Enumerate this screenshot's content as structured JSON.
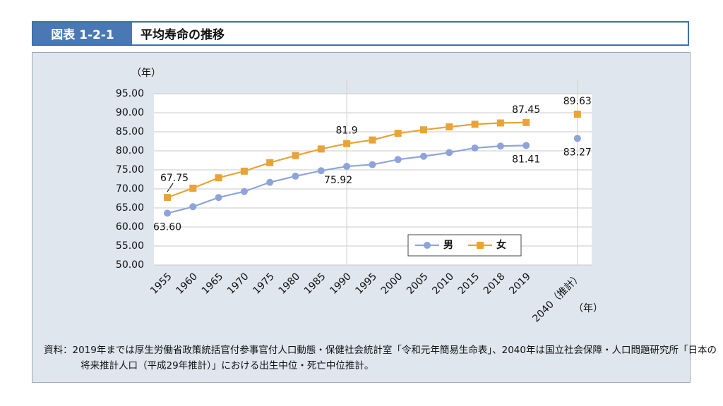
{
  "header": {
    "label": "図表 1-2-1",
    "title": "平均寿命の推移"
  },
  "chart_data": {
    "type": "line",
    "y_label": "（年）",
    "x_label": "（年）",
    "categories": [
      "1955",
      "1960",
      "1965",
      "1970",
      "1975",
      "1980",
      "1985",
      "1990",
      "1995",
      "2000",
      "2005",
      "2010",
      "2015",
      "2018",
      "2019",
      null,
      "2040（推計）"
    ],
    "series": [
      {
        "name": "男",
        "color": "#8ea4d8",
        "marker": "circle",
        "values": [
          63.6,
          65.32,
          67.74,
          69.31,
          71.73,
          73.35,
          74.78,
          75.92,
          76.38,
          77.72,
          78.56,
          79.55,
          80.75,
          81.25,
          81.41,
          null,
          83.27
        ],
        "value_labels": [
          "63.60",
          null,
          null,
          null,
          null,
          null,
          null,
          "75.92",
          null,
          null,
          null,
          null,
          null,
          null,
          "81.41",
          null,
          "83.27"
        ]
      },
      {
        "name": "女",
        "color": "#e8a33a",
        "marker": "square",
        "values": [
          67.75,
          70.19,
          72.92,
          74.66,
          76.89,
          78.76,
          80.48,
          81.9,
          82.85,
          84.6,
          85.52,
          86.3,
          86.99,
          87.32,
          87.45,
          null,
          89.63
        ],
        "value_labels": [
          "67.75",
          null,
          null,
          null,
          null,
          null,
          null,
          "81.9",
          null,
          null,
          null,
          null,
          null,
          null,
          "87.45",
          null,
          "89.63"
        ]
      }
    ],
    "ylim": [
      50,
      95
    ],
    "yticks": [
      {
        "value": 50,
        "label": "50.00"
      },
      {
        "value": 55,
        "label": "55.00"
      },
      {
        "value": 60,
        "label": "60.00"
      },
      {
        "value": 65,
        "label": "65.00"
      },
      {
        "value": 70,
        "label": "70.00"
      },
      {
        "value": 75,
        "label": "75.00"
      },
      {
        "value": 80,
        "label": "80.00"
      },
      {
        "value": 85,
        "label": "85.00"
      },
      {
        "value": 90,
        "label": "90.00"
      },
      {
        "value": 95,
        "label": "95.00"
      }
    ],
    "grid": true,
    "legend": "lower right"
  },
  "source": "資料：2019年までは厚生労働省政策統括官付参事官付人口動態・保健社会統計室「令和元年簡易生命表」、2040年は国立社会保障・人口問題研究所「日本の将来推計人口（平成29年推計）」における出生中位・死亡中位推計。"
}
